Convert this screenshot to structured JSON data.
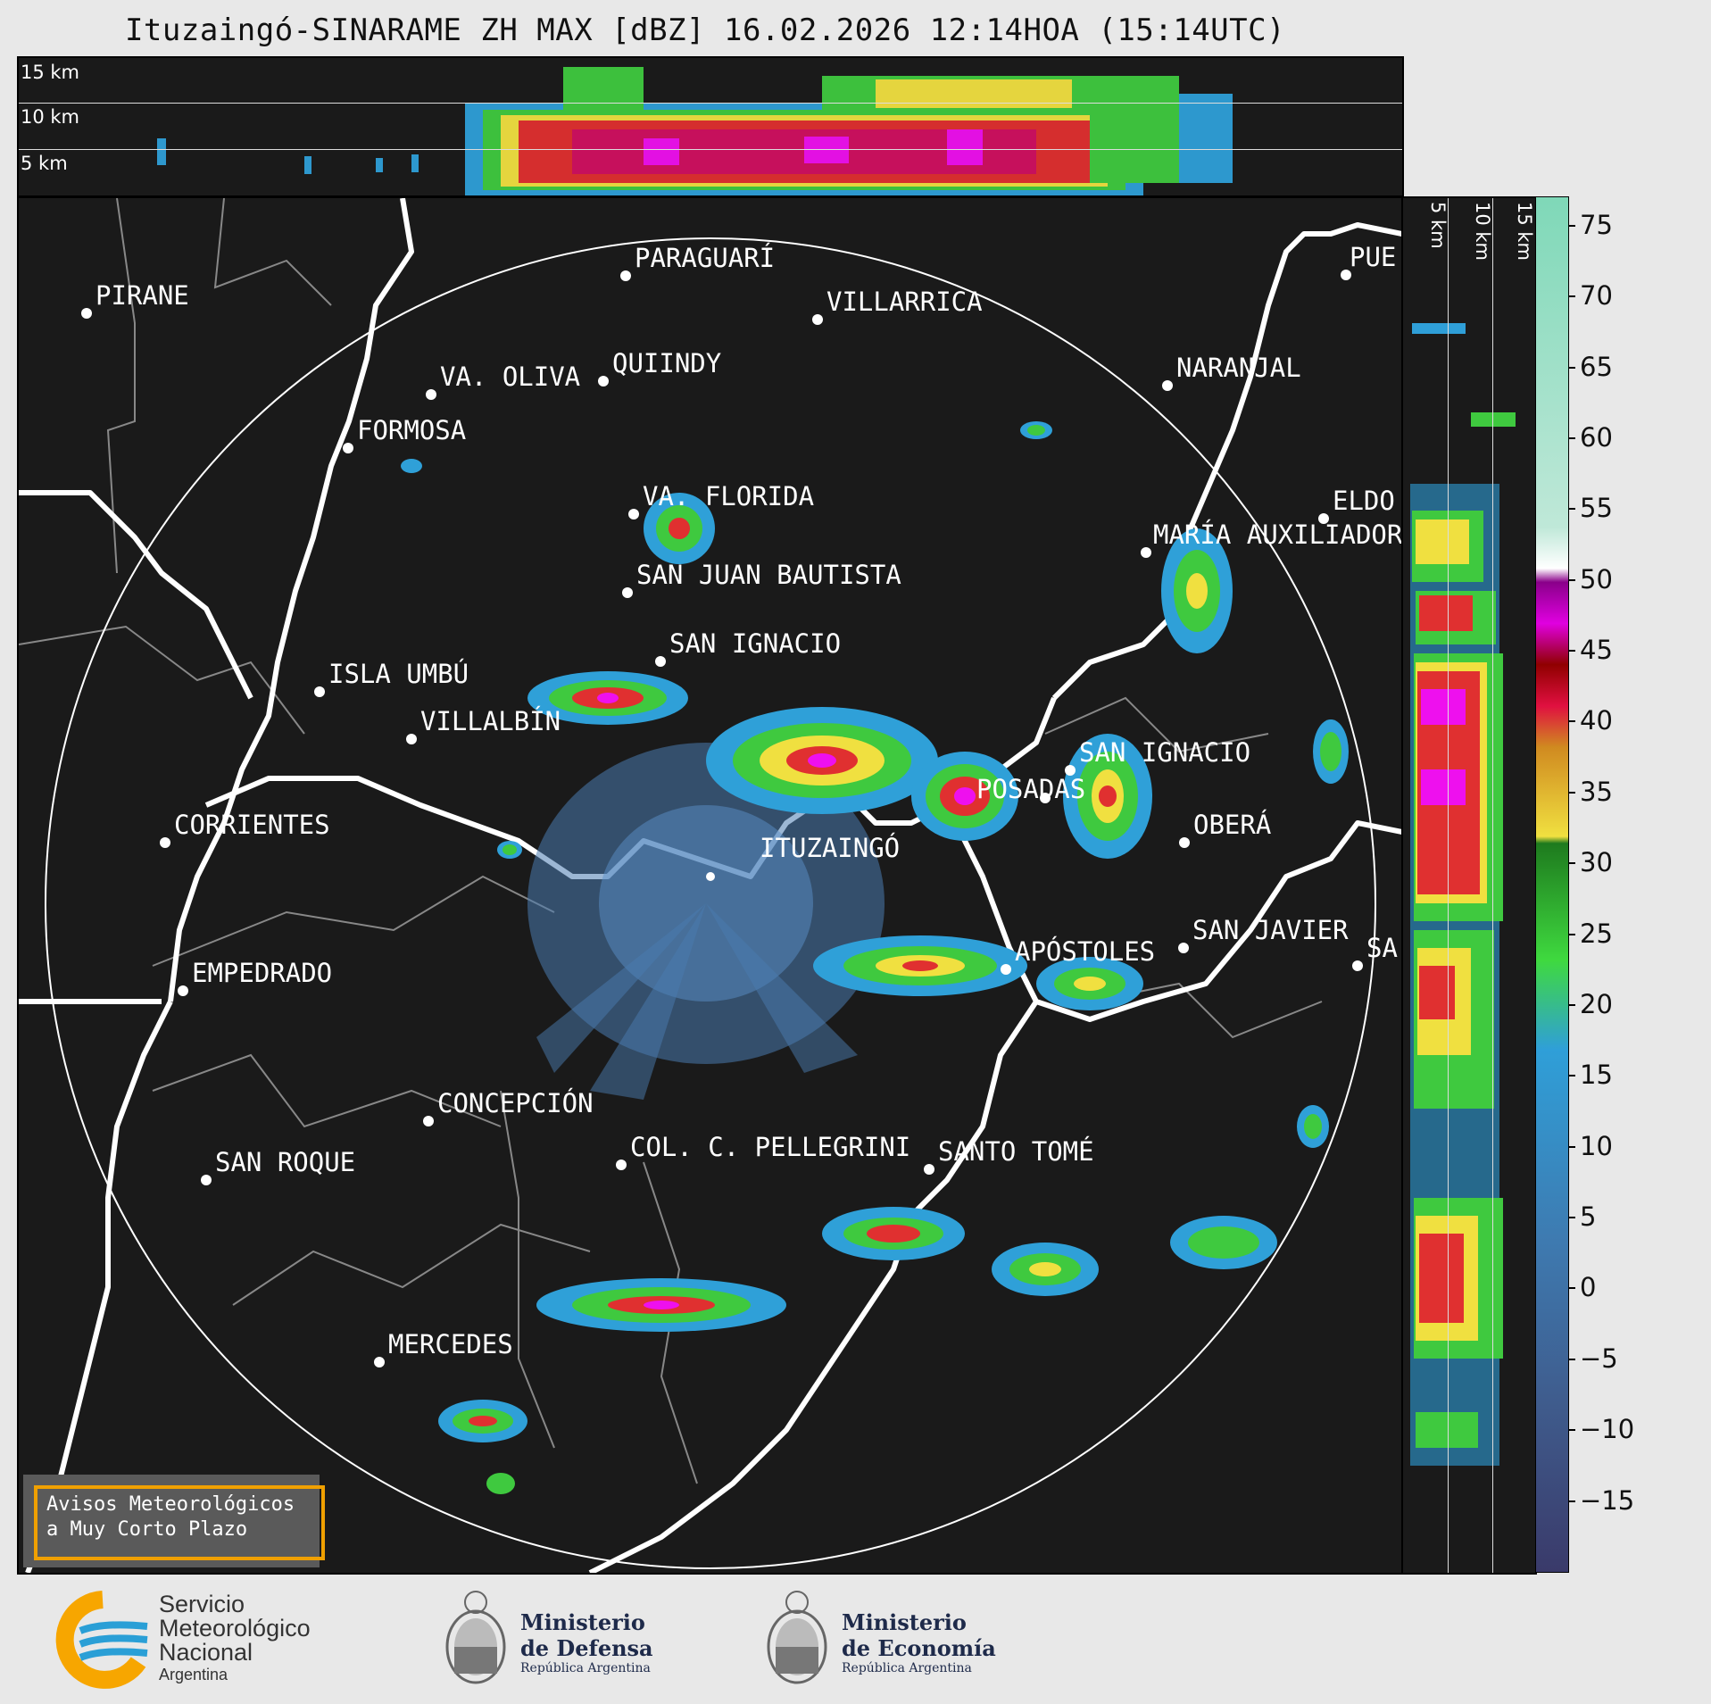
{
  "title": "Ituzaingó-SINARAME ZH MAX [dBZ] 16.02.2026 12:14HOA (15:14UTC)",
  "top_panel": {
    "height_labels": [
      "15 km",
      "10 km",
      "5 km"
    ]
  },
  "side_panel": {
    "height_labels": [
      "5 km",
      "10 km",
      "15 km"
    ]
  },
  "colorbar": {
    "unit": "dBZ",
    "ticks": [
      "75",
      "70",
      "65",
      "60",
      "55",
      "50",
      "45",
      "40",
      "35",
      "30",
      "25",
      "20",
      "15",
      "10",
      "5",
      "0",
      "−5",
      "−10",
      "−15"
    ],
    "min": -20,
    "max": 77
  },
  "cities": [
    {
      "name": "PIRANE"
    },
    {
      "name": "PARAGUARÍ"
    },
    {
      "name": "VILLARRICA"
    },
    {
      "name": "QUIINDY"
    },
    {
      "name": "VA. OLIVA"
    },
    {
      "name": "FORMOSA"
    },
    {
      "name": "NARANJAL"
    },
    {
      "name": "PUE"
    },
    {
      "name": "ELDO"
    },
    {
      "name": "VA. FLORIDA"
    },
    {
      "name": "MARÍA AUXILIADOR"
    },
    {
      "name": "SAN JUAN BAUTISTA"
    },
    {
      "name": "SAN IGNACIO"
    },
    {
      "name": "ISLA UMBÚ"
    },
    {
      "name": "VILLALBÍN"
    },
    {
      "name": "SAN IGNACIO"
    },
    {
      "name": "POSADAS"
    },
    {
      "name": "CORRIENTES"
    },
    {
      "name": "ITUZAINGÓ"
    },
    {
      "name": "OBERÁ"
    },
    {
      "name": "APÓSTOLES"
    },
    {
      "name": "SAN JAVIER"
    },
    {
      "name": "SA"
    },
    {
      "name": "EMPEDRADO"
    },
    {
      "name": "CONCEPCIÓN"
    },
    {
      "name": "COL. C. PELLEGRINI"
    },
    {
      "name": "SANTO TOMÉ"
    },
    {
      "name": "SAN ROQUE"
    },
    {
      "name": "MERCEDES"
    }
  ],
  "warning": {
    "line1": "Avisos Meteorológicos",
    "line2": "a Muy Corto Plazo"
  },
  "logos": {
    "smn_line1": "Servicio",
    "smn_line2": "Meteorológico",
    "smn_line3": "Nacional",
    "smn_line4": "Argentina",
    "defensa_line1": "Ministerio",
    "defensa_line2": "de Defensa",
    "defensa_line3": "República Argentina",
    "economia_line1": "Ministerio",
    "economia_line2": "de Economía",
    "economia_line3": "República Argentina"
  },
  "colors": {
    "background": "#1a1a1a",
    "border": "#ffffff",
    "warning_border": "#f0a000",
    "smn_blue": "#2a9fd6",
    "smn_orange": "#f7a600"
  }
}
